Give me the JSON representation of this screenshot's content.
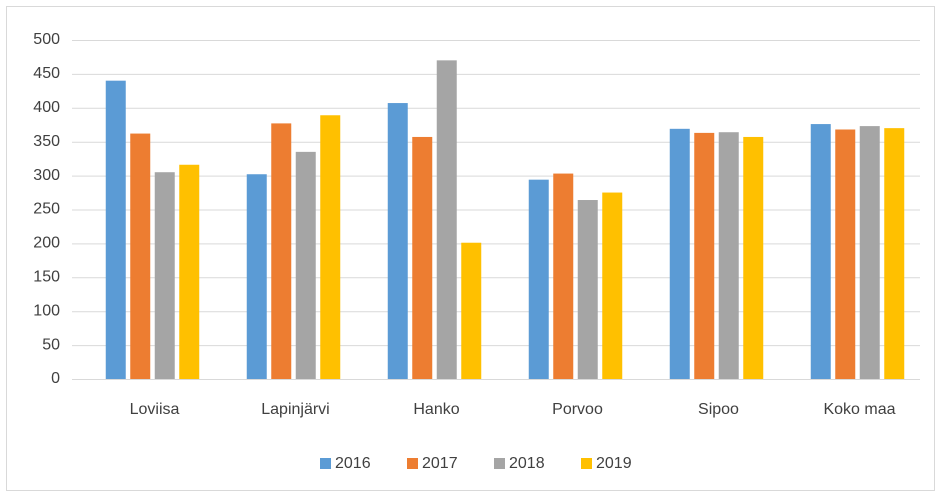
{
  "chart_data": {
    "type": "bar",
    "categories": [
      "Loviisa",
      "Lapinjärvi",
      "Hanko",
      "Porvoo",
      "Sipoo",
      "Koko maa"
    ],
    "series": [
      {
        "name": "2016",
        "color": "#5b9bd5",
        "values": [
          440,
          302,
          407,
          294,
          369,
          376
        ]
      },
      {
        "name": "2017",
        "color": "#ed7d31",
        "values": [
          362,
          377,
          357,
          303,
          363,
          368
        ]
      },
      {
        "name": "2018",
        "color": "#a5a5a5",
        "values": [
          305,
          335,
          470,
          264,
          364,
          373
        ]
      },
      {
        "name": "2019",
        "color": "#ffc000",
        "values": [
          316,
          389,
          201,
          275,
          357,
          370
        ]
      }
    ],
    "ylim": [
      0,
      500
    ],
    "yticks": [
      0,
      50,
      100,
      150,
      200,
      250,
      300,
      350,
      400,
      450,
      500
    ],
    "grid": true,
    "legend": "bottom"
  }
}
